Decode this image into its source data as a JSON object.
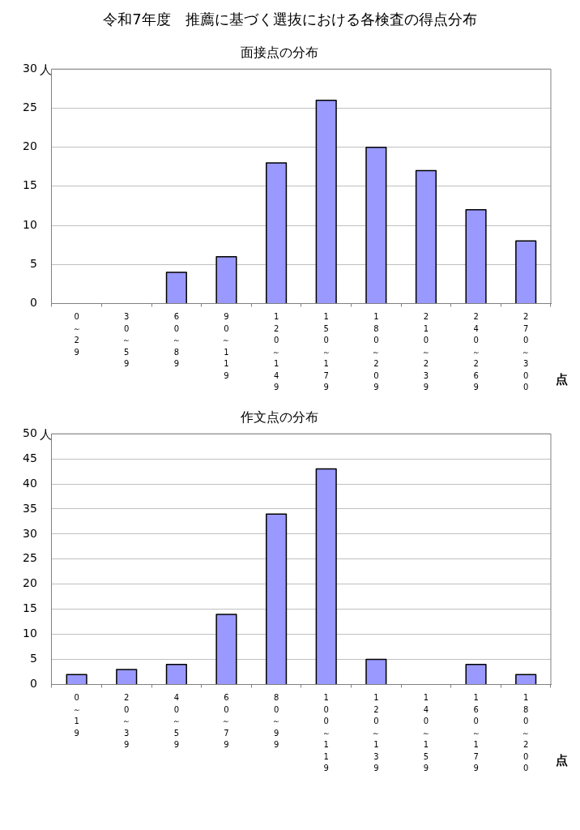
{
  "chart_data": [
    {
      "type": "bar",
      "title": "面接点の分布",
      "annotations": [
        "令和7年度　推薦に基づく選抜における各検査の得点分布"
      ],
      "xlabel": "点",
      "ylabel": "人",
      "categories": [
        "0～29",
        "30～59",
        "60～89",
        "90～119",
        "120～149",
        "150～179",
        "180～209",
        "210～239",
        "240～269",
        "270～300"
      ],
      "values": [
        0,
        0,
        4,
        6,
        18,
        26,
        20,
        17,
        12,
        8
      ],
      "color": "#9999ff",
      "ylim": [
        0,
        30
      ],
      "yticks": [
        0,
        5,
        10,
        15,
        20,
        25,
        30
      ],
      "grid": "y",
      "legend": false
    },
    {
      "type": "bar",
      "title": "作文点の分布",
      "xlabel": "点",
      "ylabel": "人",
      "categories": [
        "0～19",
        "20～39",
        "40～59",
        "60～79",
        "80～99",
        "100～119",
        "120～139",
        "140～159",
        "160～179",
        "180～200"
      ],
      "values": [
        2,
        3,
        4,
        14,
        34,
        43,
        5,
        0,
        4,
        2
      ],
      "color": "#9999ff",
      "ylim": [
        0,
        50
      ],
      "yticks": [
        0,
        5,
        10,
        15,
        20,
        25,
        30,
        35,
        40,
        45,
        50
      ],
      "grid": "y",
      "legend": false
    }
  ]
}
